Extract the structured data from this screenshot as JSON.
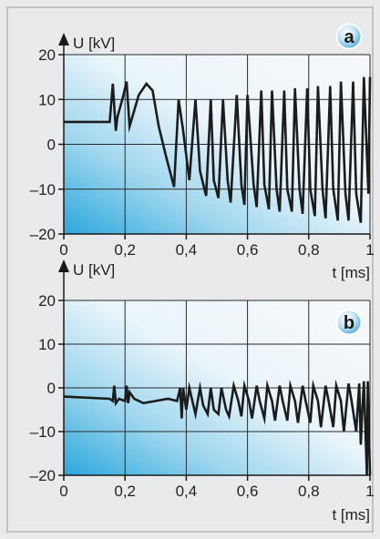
{
  "chart_data": [
    {
      "type": "line",
      "panel_label": "a",
      "ylabel": "U [kV]",
      "xlabel": "t [ms]",
      "xlim": [
        0,
        1
      ],
      "ylim": [
        -20,
        20
      ],
      "x_ticks": [
        0,
        0.2,
        0.4,
        0.6,
        0.8,
        1
      ],
      "x_tick_labels": [
        "0",
        "0,2",
        "0,4",
        "0,6",
        "0,8",
        "1"
      ],
      "y_ticks": [
        20,
        10,
        0,
        -10,
        -20
      ],
      "y_tick_labels": [
        "20",
        "10",
        "0",
        "–10",
        "–20"
      ],
      "grid": true,
      "series": [
        {
          "x": [
            0,
            0.15,
            0.16,
            0.17,
            0.175,
            0.195,
            0.205,
            0.215,
            0.245,
            0.27,
            0.29,
            0.31,
            0.335,
            0.36,
            0.375,
            0.39,
            0.41,
            0.43,
            0.445,
            0.465,
            0.48,
            0.49,
            0.505,
            0.52,
            0.535,
            0.545,
            0.565,
            0.58,
            0.59,
            0.6,
            0.62,
            0.63,
            0.645,
            0.655,
            0.67,
            0.68,
            0.695,
            0.705,
            0.72,
            0.73,
            0.745,
            0.755,
            0.77,
            0.78,
            0.795,
            0.805,
            0.82,
            0.83,
            0.845,
            0.855,
            0.87,
            0.88,
            0.895,
            0.905,
            0.92,
            0.93,
            0.945,
            0.955,
            0.97,
            0.98,
            0.995,
            1.0
          ],
          "values": [
            5,
            5,
            13.5,
            3,
            6,
            11,
            14,
            4,
            11,
            13.5,
            12,
            4,
            -3,
            -9.5,
            10,
            3,
            -8,
            10,
            -6,
            -11.5,
            10,
            -8,
            -12,
            10,
            -8,
            -13,
            11,
            -9,
            -13.5,
            11,
            -9,
            -14,
            12,
            -9,
            -14.5,
            12,
            -10,
            -15,
            12,
            -10,
            -15,
            12.5,
            -10,
            -15.5,
            12.5,
            -10,
            -16,
            13,
            -10,
            -16.5,
            13,
            -10,
            -17,
            14,
            -11,
            -17,
            14,
            -11,
            -17.5,
            15,
            -11,
            15
          ]
        }
      ]
    },
    {
      "type": "line",
      "panel_label": "b",
      "ylabel": "U [kV]",
      "xlabel": "t [ms]",
      "xlim": [
        0,
        1
      ],
      "ylim": [
        -20,
        20
      ],
      "x_ticks": [
        0,
        0.2,
        0.4,
        0.6,
        0.8,
        1
      ],
      "x_tick_labels": [
        "0",
        "0,2",
        "0,4",
        "0,6",
        "0,8",
        "1"
      ],
      "y_ticks": [
        20,
        10,
        0,
        -10,
        -20
      ],
      "y_tick_labels": [
        "20",
        "10",
        "0",
        "–10",
        "–20"
      ],
      "grid": true,
      "series": [
        {
          "x": [
            0,
            0.15,
            0.16,
            0.165,
            0.17,
            0.18,
            0.2,
            0.205,
            0.21,
            0.215,
            0.23,
            0.26,
            0.3,
            0.34,
            0.37,
            0.38,
            0.385,
            0.39,
            0.4,
            0.41,
            0.42,
            0.43,
            0.445,
            0.455,
            0.47,
            0.48,
            0.49,
            0.505,
            0.515,
            0.53,
            0.54,
            0.555,
            0.57,
            0.58,
            0.59,
            0.605,
            0.615,
            0.63,
            0.64,
            0.655,
            0.665,
            0.68,
            0.69,
            0.705,
            0.715,
            0.73,
            0.74,
            0.755,
            0.765,
            0.78,
            0.79,
            0.805,
            0.815,
            0.83,
            0.84,
            0.855,
            0.865,
            0.88,
            0.89,
            0.905,
            0.915,
            0.93,
            0.94,
            0.955,
            0.965,
            0.97,
            0.975,
            0.98,
            0.99,
            0.993,
            1.0
          ],
          "values": [
            -2,
            -2.5,
            -3,
            0.5,
            -3.5,
            -2.5,
            -3,
            0.5,
            -3.5,
            -1,
            -2.5,
            -3.5,
            -3,
            -2.5,
            -3,
            0,
            -7,
            0,
            -5,
            0,
            -3,
            -6,
            0,
            -4,
            -6,
            0,
            -5,
            -6,
            0,
            -5,
            -6.5,
            0.5,
            -3,
            -6.5,
            0.5,
            -3,
            -7,
            0.5,
            -3,
            -7,
            0.5,
            -3,
            -7.5,
            0.5,
            -3,
            -7.5,
            0.5,
            -3,
            -8,
            0.5,
            -3,
            -8,
            0.5,
            -3,
            -9,
            0.5,
            -3,
            -9,
            0.5,
            -3,
            -10,
            1,
            -3,
            -10,
            1,
            -13,
            -5,
            1.5,
            -20,
            1.5,
            -20
          ]
        }
      ]
    }
  ]
}
